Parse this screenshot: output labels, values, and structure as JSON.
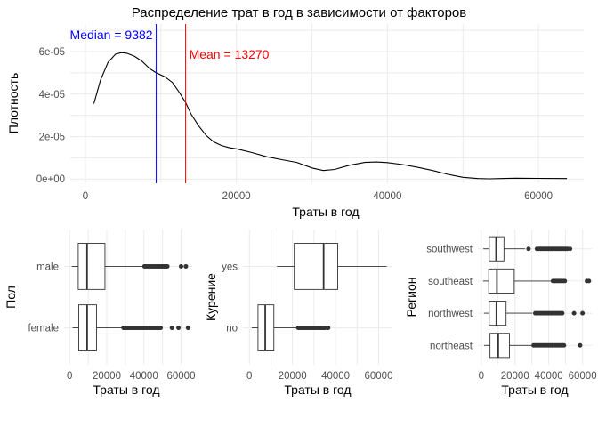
{
  "chart_data": [
    {
      "type": "line",
      "subtype": "density",
      "title": "Распределение трат в год в зависимости от факторов",
      "xlabel": "Траты в год",
      "ylabel": "Плотность",
      "xlim": [
        -2000,
        66000
      ],
      "ylim": [
        -2e-06,
        7.3e-05
      ],
      "x_ticks": [
        0,
        20000,
        40000,
        60000
      ],
      "x_tick_labels": [
        "0",
        "20000",
        "40000",
        "60000"
      ],
      "y_ticks": [
        0,
        2e-05,
        4e-05,
        6e-05
      ],
      "y_tick_labels": [
        "0e+00",
        "2e-05",
        "4e-05",
        "6e-05"
      ],
      "grid": true,
      "series": [
        {
          "color": "#000000",
          "x": [
            1122,
            2000,
            3000,
            4000,
            4800,
            5500,
            6500,
            7500,
            8500,
            9382,
            10500,
            11500,
            12500,
            13270,
            14000,
            15000,
            16000,
            17000,
            18000,
            19000,
            20000,
            22000,
            24000,
            26000,
            28000,
            30000,
            31500,
            33000,
            35000,
            37000,
            38500,
            40000,
            42000,
            44000,
            46000,
            48000,
            50000,
            52000,
            53500,
            55000,
            57000,
            60000,
            63770
          ],
          "y": [
            3.55e-05,
            4.65e-05,
            5.5e-05,
            5.88e-05,
            5.95e-05,
            5.92e-05,
            5.78e-05,
            5.55e-05,
            5.2e-05,
            5e-05,
            4.82e-05,
            4.55e-05,
            4.05e-05,
            3.6e-05,
            3.05e-05,
            2.5e-05,
            2.05e-05,
            1.75e-05,
            1.58e-05,
            1.48e-05,
            1.42e-05,
            1.25e-05,
            1.05e-05,
            9.1e-06,
            7.8e-06,
            5.2e-06,
            4e-06,
            4.5e-06,
            6.5e-06,
            7.8e-06,
            8e-06,
            7.7e-06,
            6.8e-06,
            5.5e-06,
            4e-06,
            2.2e-06,
            8e-07,
            2e-07,
            1e-07,
            2e-07,
            4e-07,
            3e-07,
            2e-07
          ]
        }
      ],
      "vlines": [
        {
          "label": "Median = 9382",
          "value": 9382,
          "color": "#0000ff"
        },
        {
          "label": "Mean = 13270",
          "value": 13270,
          "color": "#ff0000"
        }
      ]
    },
    {
      "type": "boxplot",
      "xlabel": "Траты в год",
      "ylabel": "Пол",
      "xlim": [
        -3000,
        66000
      ],
      "x_ticks": [
        0,
        20000,
        40000,
        60000
      ],
      "x_tick_labels": [
        "0",
        "20000",
        "40000",
        "60000"
      ],
      "categories": [
        "female",
        "male"
      ],
      "boxes": [
        {
          "q1": 4890,
          "median": 9410,
          "q3": 14480,
          "whisker_low": 1608,
          "whisker_high": 28900,
          "outliers": [
            29000,
            29800,
            30600,
            31400,
            32200,
            33000,
            33800,
            34600,
            35400,
            36200,
            37000,
            37800,
            38600,
            39400,
            40200,
            41000,
            41800,
            42600,
            43400,
            44200,
            45000,
            45800,
            46600,
            47400,
            48200,
            49000,
            55100,
            58600,
            63770
          ]
        },
        {
          "q1": 4620,
          "median": 9370,
          "q3": 19010,
          "whisker_low": 1122,
          "whisker_high": 40200,
          "outliers": [
            40300,
            41000,
            41800,
            42600,
            43400,
            44200,
            45000,
            45700,
            46400,
            47100,
            47800,
            48500,
            49200,
            49900,
            50600,
            51300,
            52000,
            52600,
            60000,
            62600
          ]
        }
      ],
      "grid": true
    },
    {
      "type": "boxplot",
      "xlabel": "Траты в год",
      "ylabel": "Курение",
      "xlim": [
        -3000,
        66000
      ],
      "x_ticks": [
        0,
        20000,
        40000,
        60000
      ],
      "x_tick_labels": [
        "0",
        "20000",
        "40000",
        "60000"
      ],
      "categories": [
        "no",
        "yes"
      ],
      "boxes": [
        {
          "q1": 3990,
          "median": 7350,
          "q3": 11360,
          "whisker_low": 1122,
          "whisker_high": 22400,
          "outliers": [
            22700,
            23400,
            24100,
            24800,
            25500,
            26200,
            26900,
            27600,
            28300,
            29000,
            29700,
            30400,
            31100,
            31800,
            32500,
            33200,
            33900,
            34600,
            35200,
            36580
          ]
        },
        {
          "q1": 20830,
          "median": 34460,
          "q3": 41020,
          "whisker_low": 12830,
          "whisker_high": 63770,
          "outliers": []
        }
      ],
      "grid": true
    },
    {
      "type": "boxplot",
      "xlabel": "Траты в год",
      "ylabel": "Регион",
      "xlim": [
        -2000,
        66000
      ],
      "x_ticks": [
        0,
        20000,
        40000,
        60000
      ],
      "x_tick_labels": [
        "0",
        "20000",
        "40000",
        "60000"
      ],
      "categories": [
        "northeast",
        "northwest",
        "southeast",
        "southwest"
      ],
      "boxes": [
        {
          "q1": 5190,
          "median": 10060,
          "q3": 16690,
          "whisker_low": 1695,
          "whisker_high": 30600,
          "outliers": [
            31000,
            32000,
            33000,
            34000,
            35000,
            36000,
            37000,
            38000,
            39000,
            40000,
            41000,
            42000,
            43000,
            44000,
            45000,
            46000,
            47000,
            48000,
            49000,
            58570
          ]
        },
        {
          "q1": 4720,
          "median": 8970,
          "q3": 14710,
          "whisker_low": 1621,
          "whisker_high": 30300,
          "outliers": [
            32000,
            33000,
            34000,
            35000,
            36000,
            37000,
            38000,
            39000,
            40000,
            41000,
            42000,
            43000,
            44000,
            45000,
            46000,
            47000,
            48000,
            55000,
            60000
          ]
        },
        {
          "q1": 4440,
          "median": 9290,
          "q3": 19530,
          "whisker_low": 1122,
          "whisker_high": 42000,
          "outliers": [
            42500,
            43500,
            44500,
            45500,
            46500,
            47500,
            48500,
            49500,
            62600,
            63770
          ]
        },
        {
          "q1": 4750,
          "median": 8800,
          "q3": 13460,
          "whisker_low": 1242,
          "whisker_high": 25900,
          "outliers": [
            28000,
            33000,
            34000,
            35000,
            36000,
            37000,
            38000,
            39000,
            40000,
            41000,
            42000,
            43000,
            44000,
            45000,
            46000,
            47000,
            48000,
            49000,
            50000,
            51000,
            52600
          ]
        }
      ],
      "grid": true
    }
  ]
}
